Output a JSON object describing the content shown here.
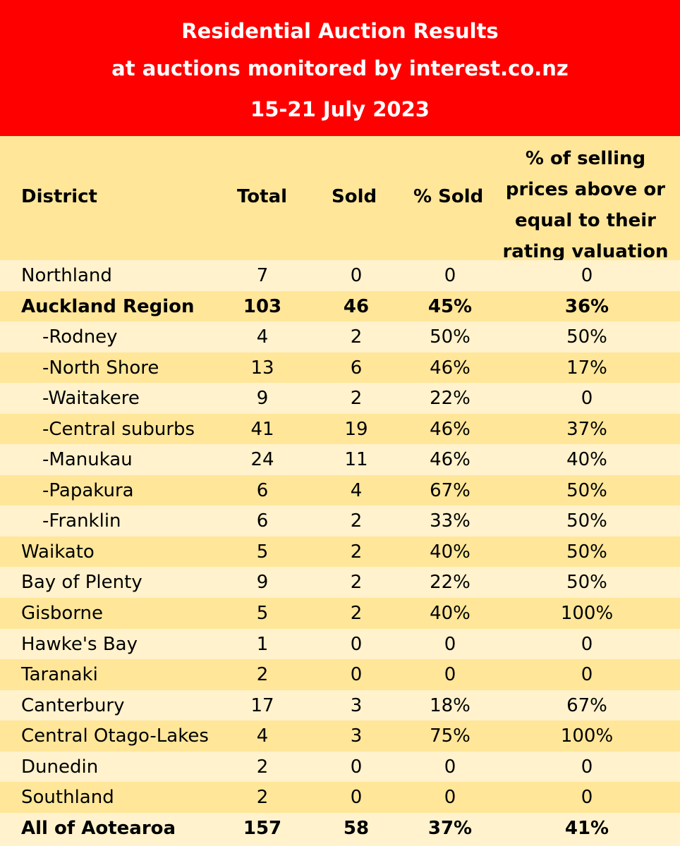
{
  "header": {
    "line1": "Residential Auction Results",
    "line2": "at auctions monitored by interest.co.nz",
    "line3": "15-21 July 2023"
  },
  "columns": {
    "district": "District",
    "total": "Total",
    "sold": "Sold",
    "pct_sold": "% Sold",
    "rv": [
      "% of selling",
      "prices above or",
      "equal to their",
      "rating valuation"
    ]
  },
  "chart_data": {
    "type": "table",
    "columns": [
      "District",
      "Total",
      "Sold",
      "% Sold",
      "% of selling prices above or equal to their rating valuation"
    ],
    "rows": [
      {
        "district": "Northland",
        "total": "7",
        "sold": "0",
        "pct_sold": "0",
        "rv": "0",
        "sub": false,
        "bold": false
      },
      {
        "district": "Auckland Region",
        "total": "103",
        "sold": "46",
        "pct_sold": "45%",
        "rv": "36%",
        "sub": false,
        "bold": true
      },
      {
        "district": "-Rodney",
        "total": "4",
        "sold": "2",
        "pct_sold": "50%",
        "rv": "50%",
        "sub": true,
        "bold": false
      },
      {
        "district": "-North Shore",
        "total": "13",
        "sold": "6",
        "pct_sold": "46%",
        "rv": "17%",
        "sub": true,
        "bold": false
      },
      {
        "district": "-Waitakere",
        "total": "9",
        "sold": "2",
        "pct_sold": "22%",
        "rv": "0",
        "sub": true,
        "bold": false
      },
      {
        "district": "-Central suburbs",
        "total": "41",
        "sold": "19",
        "pct_sold": "46%",
        "rv": "37%",
        "sub": true,
        "bold": false
      },
      {
        "district": "-Manukau",
        "total": "24",
        "sold": "11",
        "pct_sold": "46%",
        "rv": "40%",
        "sub": true,
        "bold": false
      },
      {
        "district": "-Papakura",
        "total": "6",
        "sold": "4",
        "pct_sold": "67%",
        "rv": "50%",
        "sub": true,
        "bold": false
      },
      {
        "district": "-Franklin",
        "total": "6",
        "sold": "2",
        "pct_sold": "33%",
        "rv": "50%",
        "sub": true,
        "bold": false
      },
      {
        "district": "Waikato",
        "total": "5",
        "sold": "2",
        "pct_sold": "40%",
        "rv": "50%",
        "sub": false,
        "bold": false
      },
      {
        "district": "Bay of Plenty",
        "total": "9",
        "sold": "2",
        "pct_sold": "22%",
        "rv": "50%",
        "sub": false,
        "bold": false
      },
      {
        "district": "Gisborne",
        "total": "5",
        "sold": "2",
        "pct_sold": "40%",
        "rv": "100%",
        "sub": false,
        "bold": false
      },
      {
        "district": "Hawke's Bay",
        "total": "1",
        "sold": "0",
        "pct_sold": "0",
        "rv": "0",
        "sub": false,
        "bold": false
      },
      {
        "district": "Taranaki",
        "total": "2",
        "sold": "0",
        "pct_sold": "0",
        "rv": "0",
        "sub": false,
        "bold": false
      },
      {
        "district": "Canterbury",
        "total": "17",
        "sold": "3",
        "pct_sold": "18%",
        "rv": "67%",
        "sub": false,
        "bold": false
      },
      {
        "district": "Central Otago-Lakes",
        "total": "4",
        "sold": "3",
        "pct_sold": "75%",
        "rv": "100%",
        "sub": false,
        "bold": false
      },
      {
        "district": "Dunedin",
        "total": "2",
        "sold": "0",
        "pct_sold": "0",
        "rv": "0",
        "sub": false,
        "bold": false
      },
      {
        "district": "Southland",
        "total": "2",
        "sold": "0",
        "pct_sold": "0",
        "rv": "0",
        "sub": false,
        "bold": false
      },
      {
        "district": "All of Aotearoa",
        "total": "157",
        "sold": "58",
        "pct_sold": "37%",
        "rv": "41%",
        "sub": false,
        "bold": true
      }
    ]
  }
}
